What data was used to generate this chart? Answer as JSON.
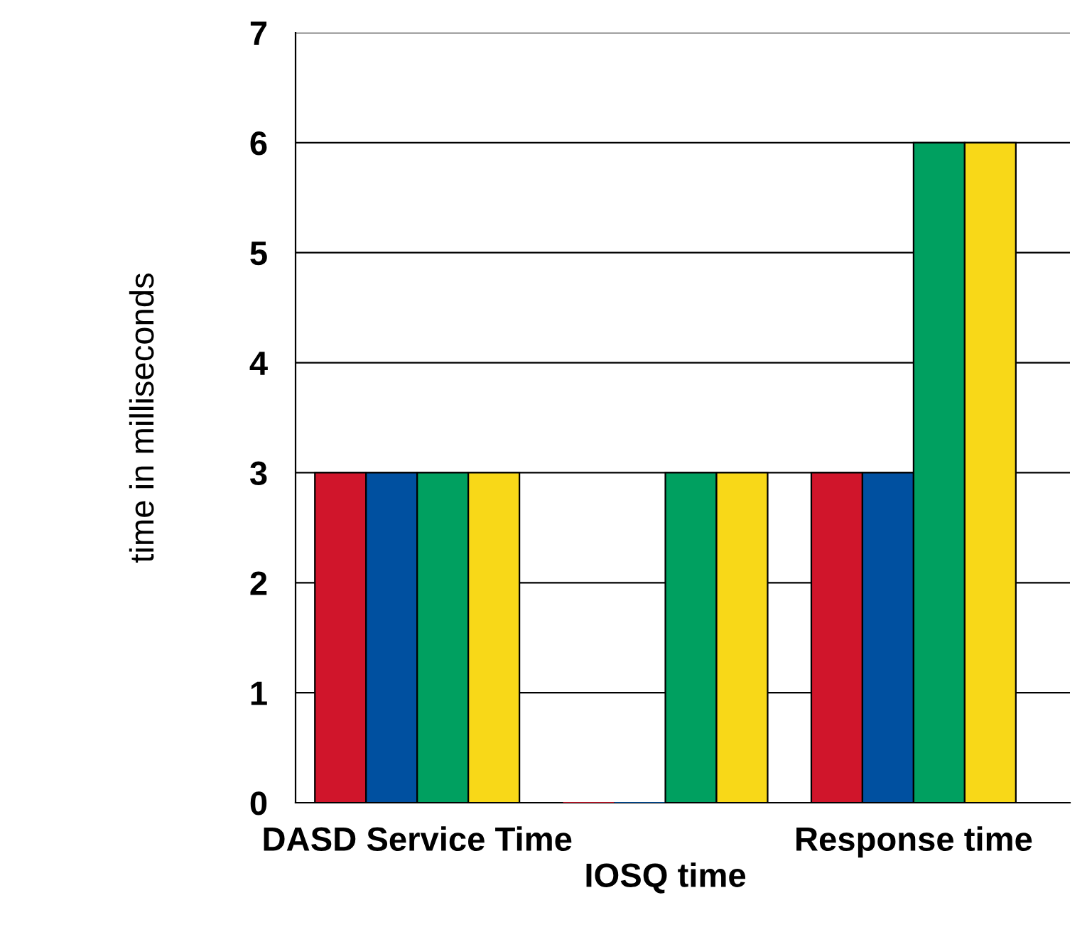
{
  "chart_data": {
    "type": "bar",
    "ylabel": "time in milliseconds",
    "categories": [
      "DASD Service Time",
      "IOSQ time",
      "Response time"
    ],
    "series": [
      {
        "color": "#d0152b",
        "values": [
          3,
          0,
          3
        ]
      },
      {
        "color": "#0050a0",
        "values": [
          3,
          0,
          3
        ]
      },
      {
        "color": "#00a060",
        "values": [
          3,
          3,
          6
        ]
      },
      {
        "color": "#f8d818",
        "values": [
          3,
          3,
          6
        ]
      }
    ],
    "ylim": [
      0,
      7
    ],
    "yticks": [
      0,
      1,
      2,
      3,
      4,
      5,
      6,
      7
    ],
    "grid": "y",
    "legend": false
  }
}
